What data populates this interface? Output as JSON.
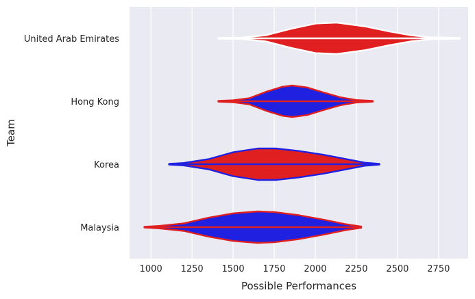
{
  "chart_data": {
    "type": "violin",
    "orientation": "horizontal",
    "title": "",
    "xlabel": "Possible Performances",
    "ylabel": "Team",
    "xlim": [
      870,
      2930
    ],
    "xticks": [
      1000,
      1250,
      1500,
      1750,
      2000,
      2250,
      2500,
      2750
    ],
    "grid": true,
    "colors": {
      "background": "#eaeaf2",
      "grid": "#ffffff",
      "red": "#e02020",
      "blue": "#2020e0",
      "white": "#ffffff"
    },
    "categories": [
      "United Arab Emirates",
      "Hong Kong",
      "Korea",
      "Malaysia"
    ],
    "violins": [
      {
        "team": "United Arab Emirates",
        "fill": "#e02020",
        "edge": "#ffffff",
        "min": 1410,
        "max": 2880,
        "profile": [
          [
            1410,
            0.01
          ],
          [
            1550,
            0.02
          ],
          [
            1700,
            0.1
          ],
          [
            1850,
            0.3
          ],
          [
            2000,
            0.47
          ],
          [
            2130,
            0.5
          ],
          [
            2300,
            0.38
          ],
          [
            2450,
            0.22
          ],
          [
            2580,
            0.1
          ],
          [
            2700,
            0.03
          ],
          [
            2880,
            0.01
          ]
        ]
      },
      {
        "team": "Hong Kong",
        "fill": "#2020e0",
        "edge": "#e02020",
        "min": 1410,
        "max": 2350,
        "profile": [
          [
            1410,
            0.01
          ],
          [
            1500,
            0.03
          ],
          [
            1600,
            0.1
          ],
          [
            1700,
            0.3
          ],
          [
            1800,
            0.46
          ],
          [
            1860,
            0.5
          ],
          [
            1950,
            0.44
          ],
          [
            2050,
            0.28
          ],
          [
            2150,
            0.13
          ],
          [
            2250,
            0.04
          ],
          [
            2350,
            0.01
          ]
        ]
      },
      {
        "team": "Korea",
        "fill": "#e02020",
        "edge": "#2020e0",
        "min": 1110,
        "max": 2390,
        "profile": [
          [
            1110,
            0.01
          ],
          [
            1200,
            0.04
          ],
          [
            1350,
            0.16
          ],
          [
            1500,
            0.38
          ],
          [
            1650,
            0.5
          ],
          [
            1760,
            0.5
          ],
          [
            1900,
            0.42
          ],
          [
            2050,
            0.3
          ],
          [
            2200,
            0.15
          ],
          [
            2300,
            0.05
          ],
          [
            2390,
            0.01
          ]
        ]
      },
      {
        "team": "Malaysia",
        "fill": "#2020e0",
        "edge": "#e02020",
        "min": 960,
        "max": 2280,
        "profile": [
          [
            960,
            0.01
          ],
          [
            1050,
            0.04
          ],
          [
            1200,
            0.12
          ],
          [
            1350,
            0.3
          ],
          [
            1500,
            0.44
          ],
          [
            1650,
            0.5
          ],
          [
            1750,
            0.48
          ],
          [
            1900,
            0.38
          ],
          [
            2050,
            0.24
          ],
          [
            2180,
            0.1
          ],
          [
            2280,
            0.02
          ]
        ]
      }
    ]
  }
}
